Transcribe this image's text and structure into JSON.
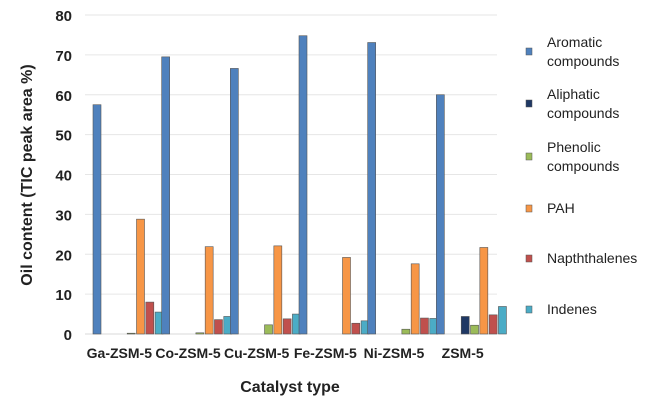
{
  "chart_data": {
    "type": "bar",
    "title": "",
    "xlabel": "Catalyst type",
    "ylabel": "Oil content (TIC peak area %)",
    "ylim": [
      0,
      80
    ],
    "yticks": [
      0,
      10,
      20,
      30,
      40,
      50,
      60,
      70,
      80
    ],
    "grid": true,
    "legend_position": "right",
    "categories": [
      "Ga-ZSM-5",
      "Co-ZSM-5",
      "Cu-ZSM-5",
      "Fe-ZSM-5",
      "Ni-ZSM-5",
      "ZSM-5"
    ],
    "series": [
      {
        "name": "Aromatic compounds",
        "color": "#4f81bd",
        "values": [
          57.5,
          69.5,
          66.6,
          74.8,
          73.1,
          60.0
        ]
      },
      {
        "name": "Aliphatic compounds",
        "color": "#1f3864",
        "values": [
          0,
          0,
          0,
          0,
          0,
          4.4
        ]
      },
      {
        "name": "Phenolic compounds",
        "color": "#9bbb59",
        "values": [
          0.2,
          0.3,
          2.3,
          0,
          1.2,
          2.2
        ]
      },
      {
        "name": "PAH",
        "color": "#f79646",
        "values": [
          28.8,
          21.9,
          22.1,
          19.2,
          17.6,
          21.7
        ]
      },
      {
        "name": "Napththalenes",
        "color": "#c0504d",
        "values": [
          8.0,
          3.6,
          3.8,
          2.7,
          4.0,
          4.8
        ]
      },
      {
        "name": "Indenes",
        "color": "#4bacc6",
        "values": [
          5.5,
          4.4,
          5.0,
          3.3,
          3.9,
          6.9
        ]
      }
    ]
  }
}
